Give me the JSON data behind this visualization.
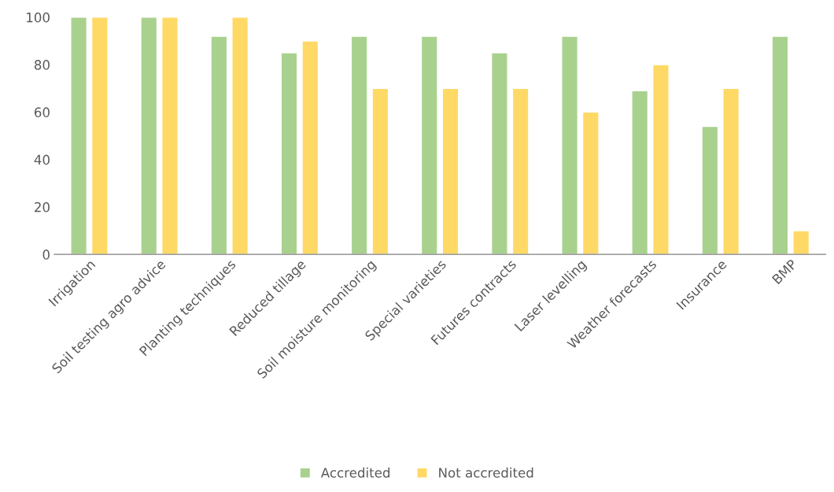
{
  "chart_data": {
    "type": "bar",
    "categories": [
      "Irrigation",
      "Soil testing agro advice",
      "Planting techniques",
      "Reduced tillage",
      "Soil moisture monitoring",
      "Special varieties",
      "Futures contracts",
      "Laser levelling",
      "Weather forecasts",
      "Insurance",
      "BMP"
    ],
    "series": [
      {
        "name": "Accredited",
        "color": "#a9d18e",
        "values": [
          100,
          100,
          92,
          85,
          92,
          92,
          85,
          92,
          69,
          54,
          92
        ]
      },
      {
        "name": "Not accredited",
        "color": "#ffd966",
        "values": [
          100,
          100,
          100,
          90,
          70,
          70,
          70,
          60,
          80,
          70,
          10
        ]
      }
    ],
    "ylim": [
      0,
      100
    ],
    "yticks": [
      0,
      20,
      40,
      60,
      80,
      100
    ],
    "grid": false,
    "legend": "bottom"
  }
}
